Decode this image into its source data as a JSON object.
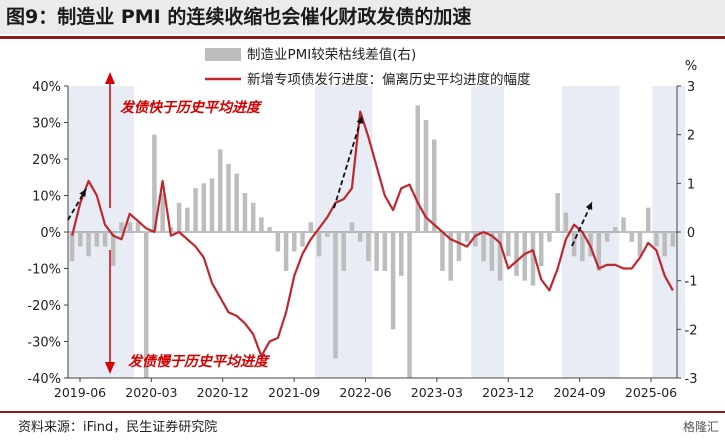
{
  "title": "图9：制造业 PMI 的连续收缩也会催化财政发债的加速",
  "source": "资料来源：iFind，民生证券研究院",
  "watermark": "格隆汇",
  "chart_data": {
    "type": "bar+line",
    "right_axis_unit": "%",
    "left_axis": {
      "ylim": [
        -40,
        40
      ],
      "ticks": [
        40,
        30,
        20,
        10,
        0,
        -10,
        -20,
        -30,
        -40
      ],
      "tick_labels": [
        "40%",
        "30%",
        "20%",
        "10%",
        "0%",
        "-10%",
        "-20%",
        "-30%",
        "-40%"
      ]
    },
    "right_axis": {
      "ylim": [
        -3,
        3
      ],
      "ticks": [
        3,
        2,
        1,
        0,
        -1,
        -2,
        -3
      ],
      "tick_labels": [
        "3",
        "2",
        "1",
        "0",
        "-1",
        "-2",
        "-3"
      ]
    },
    "x_tick_labels": [
      "2019-06",
      "2020-03",
      "2020-12",
      "2021-09",
      "2022-06",
      "2023-03",
      "2023-12",
      "2024-09",
      "2025-06"
    ],
    "legend": [
      "制造业PMI较荣枯线差值(右)",
      "新增专项债发行进度：偏离历史平均进度的幅度"
    ],
    "annotations": {
      "upper": "发债快于历史平均进度",
      "lower": "发债慢于历史平均进度"
    },
    "colors": {
      "bars": "#bdbdbd",
      "line": "#c0272d",
      "shade": "#e8ecf5",
      "annotation": "#d40000"
    },
    "shaded_index_ranges": [
      [
        0,
        7
      ],
      [
        30,
        36
      ],
      [
        49,
        52
      ],
      [
        60,
        66
      ],
      [
        71,
        74
      ]
    ],
    "series": [
      {
        "name": "制造业PMI较荣枯线差值(右)",
        "axis": "right",
        "kind": "bar",
        "values": [
          -0.6,
          -0.3,
          -0.5,
          -0.3,
          -0.3,
          -0.7,
          0.2,
          0.2,
          0.2,
          -3.0,
          2.0,
          0.8,
          0.1,
          0.6,
          0.5,
          0.9,
          1.0,
          1.1,
          1.7,
          1.4,
          1.2,
          0.8,
          0.6,
          0.3,
          0.1,
          -0.4,
          -0.8,
          -0.4,
          -0.3,
          0.2,
          -0.5,
          -0.1,
          -2.6,
          -0.8,
          0.2,
          -0.2,
          -0.6,
          -0.8,
          -0.8,
          -2.0,
          -0.9,
          -3.0,
          2.6,
          2.3,
          1.9,
          -0.8,
          -1.0,
          -0.6,
          -0.2,
          -0.3,
          -0.6,
          -0.8,
          -1.0,
          -0.5,
          -0.9,
          -1.0,
          -1.1,
          -0.7,
          -0.2,
          0.8,
          0.4,
          -0.5,
          -0.6,
          -0.5,
          -0.8,
          -0.2,
          0.1,
          0.3,
          -0.2,
          -0.5,
          0.5,
          -0.3,
          -0.5,
          -0.3
        ]
      },
      {
        "name": "新增专项债发行进度：偏离历史平均进度的幅度",
        "axis": "left",
        "kind": "line",
        "values": [
          -1,
          8,
          14,
          10,
          2,
          -1,
          -2,
          5,
          3,
          1,
          0,
          14,
          -1,
          0,
          -2,
          -4,
          -7,
          -14,
          -18,
          -22,
          -23,
          -25,
          -28,
          -34,
          -30,
          -29,
          -22,
          -12,
          -6,
          -2,
          1,
          4,
          8,
          9,
          12,
          33,
          26,
          18,
          10,
          6,
          12,
          13,
          8,
          4,
          2,
          0,
          -2,
          -3,
          -4,
          -1,
          0,
          -1,
          -3,
          -10,
          -8,
          -6,
          -5,
          -13,
          -16,
          -10,
          -2,
          2,
          0,
          -4,
          -10,
          -9,
          -9,
          -10,
          -10,
          -7,
          -3,
          -5,
          -12,
          -16
        ]
      }
    ]
  }
}
